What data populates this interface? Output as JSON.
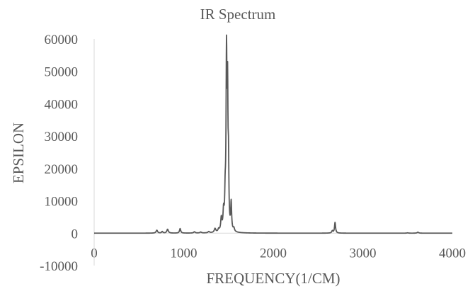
{
  "chart_data": {
    "type": "line",
    "title": "IR Spectrum",
    "xlabel": "FREQUENCY(1/CM)",
    "ylabel": "EPSILON",
    "xlim": [
      0,
      4000
    ],
    "ylim": [
      -10000,
      60000
    ],
    "x_ticks": [
      "0",
      "1000",
      "2000",
      "3000",
      "4000"
    ],
    "y_ticks": [
      "60000",
      "50000",
      "40000",
      "30000",
      "20000",
      "10000",
      "0",
      "-10000"
    ],
    "grid": false,
    "legend": "none",
    "line_color": "#595959",
    "peaks": [
      {
        "x": 700,
        "y": 900,
        "width": 10
      },
      {
        "x": 760,
        "y": 500,
        "width": 8
      },
      {
        "x": 820,
        "y": 1200,
        "width": 10
      },
      {
        "x": 960,
        "y": 1400,
        "width": 8
      },
      {
        "x": 1120,
        "y": 400,
        "width": 10
      },
      {
        "x": 1190,
        "y": 300,
        "width": 10
      },
      {
        "x": 1280,
        "y": 400,
        "width": 10
      },
      {
        "x": 1350,
        "y": 1200,
        "width": 10
      },
      {
        "x": 1390,
        "y": 800,
        "width": 8
      },
      {
        "x": 1420,
        "y": 4000,
        "width": 8
      },
      {
        "x": 1445,
        "y": 5500,
        "width": 7
      },
      {
        "x": 1463,
        "y": 9000,
        "width": 6
      },
      {
        "x": 1478,
        "y": 53000,
        "width": 6
      },
      {
        "x": 1490,
        "y": 38000,
        "width": 5
      },
      {
        "x": 1500,
        "y": 18000,
        "width": 5
      },
      {
        "x": 1530,
        "y": 8500,
        "width": 6
      },
      {
        "x": 1560,
        "y": 1000,
        "width": 8
      },
      {
        "x": 2660,
        "y": 700,
        "width": 8
      },
      {
        "x": 2690,
        "y": 3300,
        "width": 7
      },
      {
        "x": 3500,
        "y": 100,
        "width": 10
      },
      {
        "x": 3615,
        "y": 300,
        "width": 10
      }
    ]
  }
}
